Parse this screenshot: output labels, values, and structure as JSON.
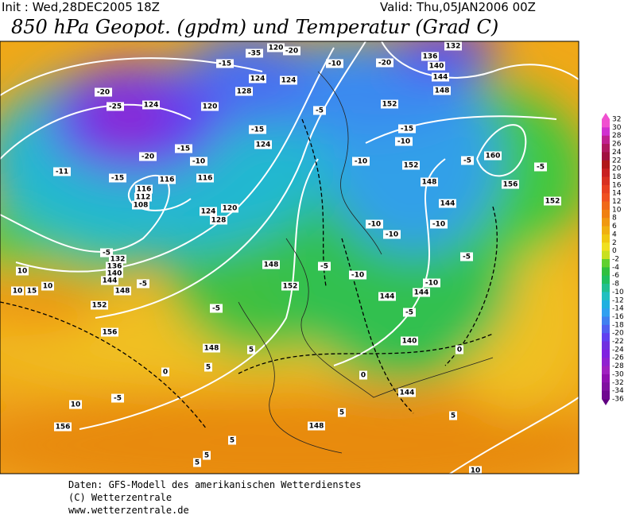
{
  "header": {
    "init": "Init : Wed,28DEC2005 18Z",
    "valid": "Valid: Thu,05JAN2006 00Z",
    "title": "850 hPa Geopot. (gpdm) und Temperatur (Grad C)"
  },
  "contour_labels": [
    "120",
    "-20",
    "-35",
    "136",
    "132",
    "-20",
    "-10",
    "140",
    "144",
    "148",
    "124",
    "-15",
    "124",
    "128",
    "-20",
    "-25",
    "124",
    "120",
    "152",
    "-5",
    "-15",
    "-15",
    "124",
    "-10",
    "160",
    "-5",
    "-5",
    "-10",
    "152",
    "-20",
    "-15",
    "-10",
    "-15",
    "-11",
    "116",
    "116",
    "148",
    "156",
    "152",
    "116",
    "112",
    "108",
    "120",
    "124",
    "128",
    "144",
    "-10",
    "-10",
    "-10",
    "-5",
    "-5",
    "132",
    "136",
    "140",
    "144",
    "148",
    "-5",
    "10",
    "10",
    "10",
    "15",
    "152",
    "148",
    "152",
    "-5",
    "-10",
    "-10",
    "144",
    "144",
    "-5",
    "-5",
    "156",
    "148",
    "5",
    "140",
    "0",
    "5",
    "0",
    "0",
    "144",
    "10",
    "-5",
    "156",
    "5",
    "148",
    "5",
    "5",
    "5",
    "5",
    "10"
  ],
  "colorbar": {
    "ticks": [
      "32",
      "30",
      "28",
      "26",
      "24",
      "22",
      "20",
      "18",
      "16",
      "14",
      "12",
      "10",
      "8",
      "6",
      "4",
      "2",
      "0",
      "-2",
      "-4",
      "-6",
      "-8",
      "-10",
      "-12",
      "-14",
      "-16",
      "-18",
      "-20",
      "-22",
      "-24",
      "-26",
      "-28",
      "-30",
      "-32",
      "-34",
      "-36"
    ],
    "colors": [
      "#f050d0",
      "#d030d0",
      "#c02090",
      "#b01860",
      "#a01040",
      "#b01818",
      "#c82020",
      "#d83020",
      "#e84020",
      "#f05020",
      "#f06818",
      "#f08010",
      "#f09810",
      "#f0b010",
      "#f0c810",
      "#f0e020",
      "#c8e020",
      "#60d030",
      "#30c040",
      "#20c060",
      "#20c090",
      "#20c0c0",
      "#20b0e0",
      "#30a0f0",
      "#4080f0",
      "#5060f0",
      "#6040f0",
      "#7030e0",
      "#8020e0",
      "#9020d0",
      "#a020c0",
      "#9010b0",
      "#8010a0",
      "#700890",
      "#600080"
    ]
  },
  "footer": {
    "line1": "Daten: GFS-Modell des amerikanischen Wetterdienstes",
    "line2": "(C) Wetterzentrale",
    "line3": "www.wetterzentrale.de"
  }
}
